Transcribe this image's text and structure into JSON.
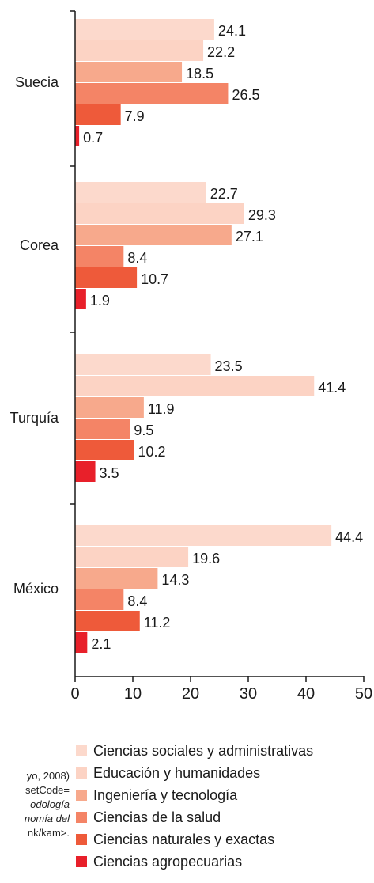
{
  "chart_data": {
    "type": "bar",
    "orientation": "horizontal",
    "categories": [
      "Suecia",
      "Corea",
      "Turquía",
      "México"
    ],
    "series": [
      {
        "name": "Ciencias sociales y administrativas",
        "color": "#fcd9cc",
        "values": [
          24.1,
          22.7,
          23.5,
          44.4
        ]
      },
      {
        "name": "Educación y humanidades",
        "color": "#fcd3c4",
        "values": [
          22.2,
          29.3,
          41.4,
          19.6
        ]
      },
      {
        "name": "Ingeniería y tecnología",
        "color": "#f7a98c",
        "values": [
          18.5,
          27.1,
          11.9,
          14.3
        ]
      },
      {
        "name": "Ciencias de la salud",
        "color": "#f48466",
        "values": [
          26.5,
          8.4,
          9.5,
          8.4
        ]
      },
      {
        "name": "Ciencias naturales y exactas",
        "color": "#ee5a3a",
        "values": [
          7.9,
          10.7,
          10.2,
          11.2
        ]
      },
      {
        "name": "Ciencias agropecuarias",
        "color": "#e8202a",
        "values": [
          0.7,
          1.9,
          3.5,
          2.1
        ]
      }
    ],
    "xlim": [
      0,
      50
    ],
    "xticks": [
      0,
      10,
      20,
      30,
      40,
      50
    ],
    "title": "",
    "xlabel": "",
    "ylabel": "",
    "grid": false,
    "legend_position": "bottom"
  },
  "source_note": {
    "line1": "yo, 2008)",
    "line2": "setCode=",
    "line3": "odología",
    "line4": "nomía del",
    "line5": "nk/kam>."
  }
}
